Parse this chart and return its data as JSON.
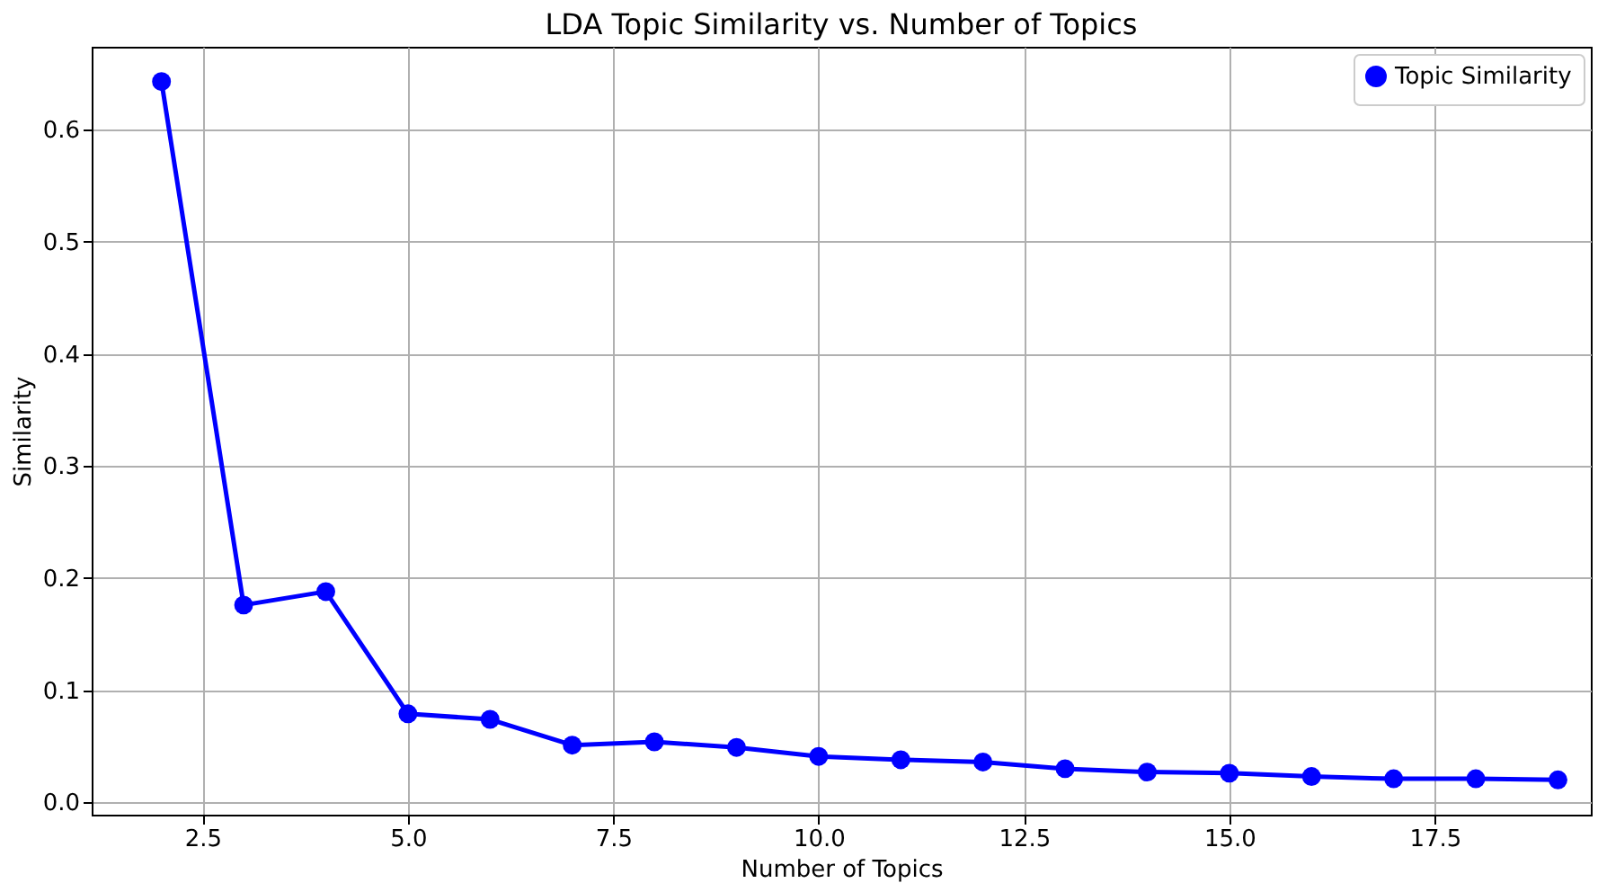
{
  "chart_data": {
    "type": "line",
    "title": "LDA Topic Similarity vs. Number of Topics",
    "xlabel": "Number of Topics",
    "ylabel": "Similarity",
    "x": [
      2,
      3,
      4,
      5,
      6,
      7,
      8,
      9,
      10,
      11,
      12,
      13,
      14,
      15,
      16,
      17,
      18,
      19
    ],
    "series": [
      {
        "name": "Topic Similarity",
        "color": "#0000ff",
        "values": [
          0.643,
          0.176,
          0.188,
          0.079,
          0.074,
          0.051,
          0.054,
          0.049,
          0.041,
          0.038,
          0.036,
          0.03,
          0.027,
          0.026,
          0.023,
          0.021,
          0.021,
          0.02
        ]
      }
    ],
    "xlim": [
      1.15,
      19.4
    ],
    "xticks": [
      {
        "value": 2.5,
        "label": "2.5"
      },
      {
        "value": 5,
        "label": "5.0"
      },
      {
        "value": 7.5,
        "label": "7.5"
      },
      {
        "value": 10,
        "label": "10.0"
      },
      {
        "value": 12.5,
        "label": "12.5"
      },
      {
        "value": 15,
        "label": "15.0"
      },
      {
        "value": 17.5,
        "label": "17.5"
      }
    ],
    "ylim": [
      -0.011,
      0.674
    ],
    "yticks": [
      {
        "value": 0,
        "label": "0.0"
      },
      {
        "value": 0.1,
        "label": "0.1"
      },
      {
        "value": 0.2,
        "label": "0.2"
      },
      {
        "value": 0.3,
        "label": "0.3"
      },
      {
        "value": 0.4,
        "label": "0.4"
      },
      {
        "value": 0.5,
        "label": "0.5"
      },
      {
        "value": 0.6,
        "label": "0.6"
      }
    ],
    "grid": true,
    "legend": "top right",
    "marker": "circle",
    "line_style": "solid"
  }
}
